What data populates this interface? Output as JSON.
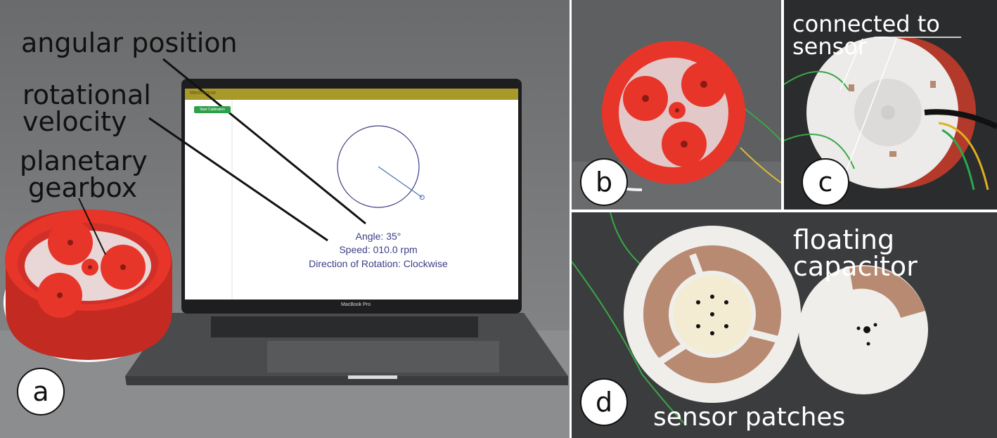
{
  "panels": {
    "a": {
      "label": "a",
      "callouts": {
        "angular_position": "angular position",
        "rotational": "rotational",
        "velocity": "velocity",
        "planetary": "planetary",
        "gearbox": "gearbox"
      },
      "screen": {
        "app_title": "MechSense",
        "calibration_button": "Start Calibration",
        "angle_text": "Angle: 35°",
        "speed_text": "Speed:  010.0 rpm",
        "direction_text": "Direction of Rotation: Clockwise",
        "angle_value_deg": 35
      },
      "laptop_brand": "MacBook Pro"
    },
    "b": {
      "label": "b"
    },
    "c": {
      "label": "c",
      "callout": "connected to sensor"
    },
    "d": {
      "label": "d",
      "callout_top": "floating capacitor",
      "callout_bottom": "sensor patches"
    }
  },
  "colors": {
    "gear_red": "#e8352a",
    "screen_blue": "#3d3f86",
    "button_green": "#2ea04a",
    "copper": "#b88a72",
    "header_gold": "#a89a2a"
  }
}
